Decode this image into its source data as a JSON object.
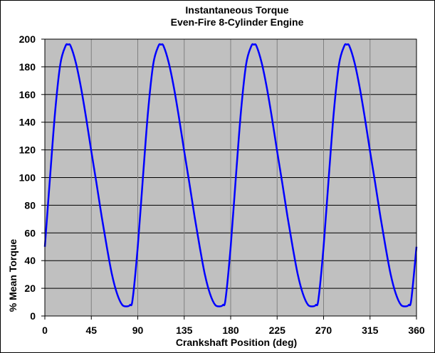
{
  "chart_data": {
    "type": "line",
    "title": "Instantaneous Torque",
    "subtitle": "Even-Fire 8-Cylinder Engine",
    "xlabel": "Crankshaft Position (deg)",
    "ylabel": "% Mean Torque",
    "xlim": [
      0,
      360
    ],
    "ylim": [
      0,
      200
    ],
    "x_ticks": [
      0,
      45,
      90,
      135,
      180,
      225,
      270,
      315,
      360
    ],
    "y_ticks": [
      0,
      20,
      40,
      60,
      80,
      100,
      120,
      140,
      160,
      180,
      200
    ],
    "grid": true,
    "legend": "none",
    "colors": {
      "plot_background": "#c0c0c0",
      "line": "#0000ff",
      "gridline": "#000000",
      "vertical_gridline": "#808080",
      "border": "#000000"
    },
    "series": [
      {
        "x": [
          0,
          5,
          10,
          15,
          20,
          22.5,
          25,
          30,
          35,
          40,
          45,
          50,
          55,
          60,
          65,
          70,
          75,
          80,
          82.5,
          85,
          90,
          95,
          100,
          105,
          110,
          112.5,
          115,
          120,
          125,
          130,
          135,
          140,
          145,
          150,
          155,
          160,
          165,
          170,
          172.5,
          175,
          180,
          185,
          190,
          195,
          200,
          202.5,
          205,
          210,
          215,
          220,
          225,
          230,
          235,
          240,
          245,
          250,
          255,
          260,
          262.5,
          265,
          270,
          275,
          280,
          285,
          290,
          292.5,
          295,
          300,
          305,
          310,
          315,
          320,
          325,
          330,
          335,
          340,
          345,
          350,
          352.5,
          355,
          360
        ],
        "values": [
          50,
          100,
          148,
          182,
          195,
          196,
          195,
          183,
          165,
          143,
          119,
          96,
          72,
          50,
          30,
          16,
          8,
          7,
          8,
          12,
          50,
          100,
          148,
          182,
          195,
          196,
          195,
          183,
          165,
          143,
          119,
          96,
          72,
          50,
          30,
          16,
          8,
          7,
          8,
          12,
          50,
          100,
          148,
          182,
          195,
          196,
          195,
          183,
          165,
          143,
          119,
          96,
          72,
          50,
          30,
          16,
          8,
          7,
          8,
          12,
          50,
          100,
          148,
          182,
          195,
          196,
          195,
          183,
          165,
          143,
          119,
          96,
          72,
          50,
          30,
          16,
          8,
          7,
          8,
          12,
          50
        ]
      }
    ]
  }
}
